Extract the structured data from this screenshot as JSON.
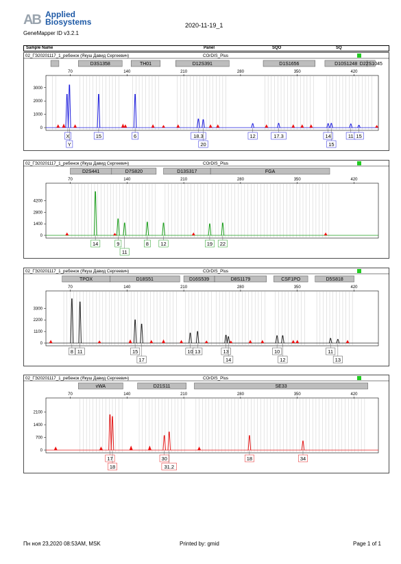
{
  "logo": {
    "mark": "AB",
    "line1": "Applied",
    "line2": "Biosystems"
  },
  "app_version": "GeneMapper ID v3.2.1",
  "report_date": "2020-11-19_1",
  "table_header": {
    "sample_name": "Sample Name",
    "panel": "Panel",
    "sqo": "SQO",
    "sq": "SQ"
  },
  "footer": {
    "left": "Пн ноя 23,2020 08:53AM, MSK",
    "center": "Printed by: gmid",
    "right": "Page 1 of 1"
  },
  "chart_data": [
    {
      "type": "electropherogram",
      "sample": "02_ГЭ20201117_1_ребенок (Якуш Давид Сергеевич)",
      "panel": "COrDIS_Plus",
      "color": "#1c1cdc",
      "xlim": [
        40,
        450
      ],
      "x_ticks": [
        70,
        140,
        210,
        280,
        350,
        420
      ],
      "y_ticks": [
        0,
        1000,
        2000,
        3000
      ],
      "ylim": [
        0,
        3400
      ],
      "markers": [
        {
          "name": "",
          "start": 46,
          "end": 56
        },
        {
          "name": "D3S1358",
          "start": 80,
          "end": 134
        },
        {
          "name": "TH01",
          "start": 145,
          "end": 181
        },
        {
          "name": "D12S391",
          "start": 200,
          "end": 266
        },
        {
          "name": "D1S1656",
          "start": 308,
          "end": 372
        },
        {
          "name": "D10S1248",
          "start": 384,
          "end": 436
        },
        {
          "name": "D22S1045",
          "start": 436,
          "end": 446
        }
      ],
      "peaks": [
        {
          "x": 66,
          "h": 2500
        },
        {
          "x": 69,
          "h": 3200
        },
        {
          "x": 105,
          "h": 2500
        },
        {
          "x": 150,
          "h": 2500
        },
        {
          "x": 228,
          "h": 650
        },
        {
          "x": 234,
          "h": 600
        },
        {
          "x": 295,
          "h": 300
        },
        {
          "x": 327,
          "h": 320
        },
        {
          "x": 388,
          "h": 300
        },
        {
          "x": 392,
          "h": 320
        },
        {
          "x": 416,
          "h": 280
        },
        {
          "x": 426,
          "h": 180
        }
      ],
      "alleles": [
        {
          "x": 67,
          "label": "X",
          "row": 0
        },
        {
          "x": 69,
          "label": "Y",
          "row": 1
        },
        {
          "x": 105,
          "label": "15",
          "row": 0
        },
        {
          "x": 150,
          "label": "6",
          "row": 0
        },
        {
          "x": 228,
          "label": "18.3",
          "row": 0
        },
        {
          "x": 234,
          "label": "20",
          "row": 1
        },
        {
          "x": 295,
          "label": "12",
          "row": 0
        },
        {
          "x": 327,
          "label": "17.3",
          "row": 0
        },
        {
          "x": 388,
          "label": "14",
          "row": 0
        },
        {
          "x": 392,
          "label": "15",
          "row": 1
        },
        {
          "x": 416,
          "label": "11",
          "row": 0
        },
        {
          "x": 426,
          "label": "15",
          "row": 0
        }
      ],
      "red_peaks": [
        {
          "x": 55,
          "h": 250
        },
        {
          "x": 62,
          "h": 300
        },
        {
          "x": 76,
          "h": 250
        },
        {
          "x": 135,
          "h": 300
        },
        {
          "x": 138,
          "h": 250
        },
        {
          "x": 172,
          "h": 250
        },
        {
          "x": 185,
          "h": 200
        },
        {
          "x": 203,
          "h": 250
        },
        {
          "x": 243,
          "h": 250
        },
        {
          "x": 252,
          "h": 250
        },
        {
          "x": 312,
          "h": 250
        },
        {
          "x": 345,
          "h": 250
        },
        {
          "x": 356,
          "h": 250
        },
        {
          "x": 367,
          "h": 250
        },
        {
          "x": 448,
          "h": 200
        }
      ]
    },
    {
      "type": "electropherogram",
      "sample": "02_ГЭ20201117_1_ребенок (Якуш Давид Сергеевич)",
      "panel": "COrDIS_Plus",
      "color": "#1a9c1a",
      "xlim": [
        40,
        450
      ],
      "x_ticks": [
        70,
        140,
        210,
        280,
        350,
        420
      ],
      "y_ticks": [
        0,
        1400,
        2800,
        4200
      ],
      "ylim": [
        0,
        5500
      ],
      "markers": [
        {
          "name": "D2S441",
          "start": 70,
          "end": 121
        },
        {
          "name": "D7S820",
          "start": 121,
          "end": 176
        },
        {
          "name": "D13S317",
          "start": 185,
          "end": 243
        },
        {
          "name": "FGA",
          "start": 243,
          "end": 390
        }
      ],
      "peaks": [
        {
          "x": 101,
          "h": 5300
        },
        {
          "x": 129,
          "h": 2000
        },
        {
          "x": 137,
          "h": 1500
        },
        {
          "x": 165,
          "h": 1600
        },
        {
          "x": 185,
          "h": 1500
        },
        {
          "x": 242,
          "h": 1400
        },
        {
          "x": 258,
          "h": 1500
        }
      ],
      "alleles": [
        {
          "x": 101,
          "label": "14",
          "row": 0
        },
        {
          "x": 129,
          "label": "9",
          "row": 0
        },
        {
          "x": 137,
          "label": "11",
          "row": 1
        },
        {
          "x": 165,
          "label": "8",
          "row": 0
        },
        {
          "x": 185,
          "label": "12",
          "row": 0
        },
        {
          "x": 242,
          "label": "19",
          "row": 0
        },
        {
          "x": 258,
          "label": "22",
          "row": 0
        }
      ],
      "red_peaks": [
        {
          "x": 66,
          "h": 350
        },
        {
          "x": 125,
          "h": 300
        },
        {
          "x": 222,
          "h": 350
        },
        {
          "x": 385,
          "h": 350
        }
      ]
    },
    {
      "type": "electropherogram",
      "sample": "02_ГЭ20201117_1_ребенок (Якуш Давид Сергеевич)",
      "panel": "COrDIS_Plus",
      "color": "#222222",
      "xlim": [
        40,
        450
      ],
      "x_ticks": [
        70,
        140,
        210,
        280,
        350,
        420
      ],
      "y_ticks": [
        0,
        1100,
        2200,
        3300
      ],
      "ylim": [
        0,
        4300
      ],
      "markers": [
        {
          "name": "TPOX",
          "start": 60,
          "end": 119
        },
        {
          "name": "D18S51",
          "start": 119,
          "end": 205
        },
        {
          "name": "D16S539",
          "start": 210,
          "end": 248
        },
        {
          "name": "D8S1179",
          "start": 248,
          "end": 312
        },
        {
          "name": "CSF1PO",
          "start": 321,
          "end": 363
        },
        {
          "name": "D5S818",
          "start": 372,
          "end": 420
        }
      ],
      "peaks": [
        {
          "x": 72,
          "h": 4200
        },
        {
          "x": 82,
          "h": 3900
        },
        {
          "x": 150,
          "h": 2200
        },
        {
          "x": 158,
          "h": 1800
        },
        {
          "x": 218,
          "h": 950
        },
        {
          "x": 227,
          "h": 1100
        },
        {
          "x": 262,
          "h": 750
        },
        {
          "x": 265,
          "h": 600
        },
        {
          "x": 325,
          "h": 700
        },
        {
          "x": 332,
          "h": 700
        },
        {
          "x": 391,
          "h": 450
        },
        {
          "x": 400,
          "h": 350
        }
      ],
      "alleles": [
        {
          "x": 72,
          "label": "8",
          "row": 0
        },
        {
          "x": 82,
          "label": "11",
          "row": 0
        },
        {
          "x": 150,
          "label": "15",
          "row": 0
        },
        {
          "x": 158,
          "label": "17",
          "row": 1
        },
        {
          "x": 218,
          "label": "10",
          "row": 0
        },
        {
          "x": 227,
          "label": "13",
          "row": 0
        },
        {
          "x": 262,
          "label": "13",
          "row": 0
        },
        {
          "x": 265,
          "label": "14",
          "row": 1
        },
        {
          "x": 325,
          "label": "10",
          "row": 0
        },
        {
          "x": 332,
          "label": "12",
          "row": 1
        },
        {
          "x": 391,
          "label": "11",
          "row": 0
        },
        {
          "x": 400,
          "label": "13",
          "row": 1
        }
      ],
      "red_peaks": [
        {
          "x": 46,
          "h": 300
        },
        {
          "x": 106,
          "h": 250
        },
        {
          "x": 144,
          "h": 350
        },
        {
          "x": 170,
          "h": 300
        },
        {
          "x": 185,
          "h": 350
        },
        {
          "x": 207,
          "h": 300
        },
        {
          "x": 238,
          "h": 250
        },
        {
          "x": 268,
          "h": 250
        },
        {
          "x": 292,
          "h": 300
        },
        {
          "x": 307,
          "h": 300
        },
        {
          "x": 345,
          "h": 300
        },
        {
          "x": 350,
          "h": 300
        },
        {
          "x": 412,
          "h": 300
        }
      ]
    },
    {
      "type": "electropherogram",
      "sample": "02_ГЭ20201117_1_ребенок (Якуш Давид Сергеевич)",
      "panel": "COrDIS_Plus",
      "color": "#e41a1a",
      "xlim": [
        40,
        450
      ],
      "x_ticks": [
        70,
        140,
        210,
        280,
        350,
        420
      ],
      "y_ticks": [
        0,
        700,
        1400,
        2100
      ],
      "ylim": [
        0,
        2500
      ],
      "markers": [
        {
          "name": "vWA",
          "start": 80,
          "end": 135
        },
        {
          "name": "D21S11",
          "start": 153,
          "end": 213
        },
        {
          "name": "SE33",
          "start": 223,
          "end": 437
        }
      ],
      "peaks": [
        {
          "x": 119,
          "h": 1950
        },
        {
          "x": 122,
          "h": 1850
        },
        {
          "x": 186,
          "h": 800
        },
        {
          "x": 192,
          "h": 1000
        },
        {
          "x": 291,
          "h": 800
        },
        {
          "x": 357,
          "h": 500
        }
      ],
      "alleles": [
        {
          "x": 119,
          "label": "17",
          "row": 0
        },
        {
          "x": 122,
          "label": "18",
          "row": 1
        },
        {
          "x": 186,
          "label": "30",
          "row": 0
        },
        {
          "x": 192,
          "label": "31.2",
          "row": 1
        },
        {
          "x": 291,
          "label": "18",
          "row": 0
        },
        {
          "x": 357,
          "label": "34",
          "row": 0
        }
      ],
      "red_peaks": [
        {
          "x": 52,
          "h": 200
        },
        {
          "x": 108,
          "h": 200
        },
        {
          "x": 145,
          "h": 250
        },
        {
          "x": 168,
          "h": 250
        },
        {
          "x": 229,
          "h": 200
        }
      ]
    }
  ]
}
